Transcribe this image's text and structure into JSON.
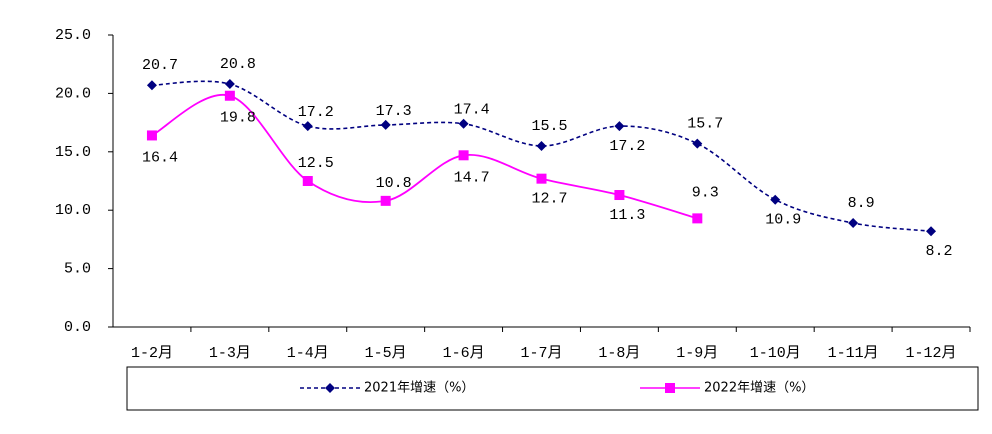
{
  "chart_data": {
    "type": "line",
    "categories": [
      "1-2月",
      "1-3月",
      "1-4月",
      "1-5月",
      "1-6月",
      "1-7月",
      "1-8月",
      "1-9月",
      "1-10月",
      "1-11月",
      "1-12月"
    ],
    "series": [
      {
        "name": "2021年增速（%）",
        "color": "#000080",
        "marker": "diamond",
        "dash": true,
        "values": [
          20.7,
          20.8,
          17.2,
          17.3,
          17.4,
          15.5,
          17.2,
          15.7,
          10.9,
          8.9,
          8.2
        ]
      },
      {
        "name": "2022年增速（%）",
        "color": "#ff00ff",
        "marker": "square",
        "dash": false,
        "values": [
          16.4,
          19.8,
          12.5,
          10.8,
          14.7,
          12.7,
          11.3,
          9.3,
          null,
          null,
          null
        ]
      }
    ],
    "ylim": [
      0,
      25
    ],
    "yticks": [
      {
        "value": 0,
        "label": "0.0"
      },
      {
        "value": 5,
        "label": "5.0"
      },
      {
        "value": 10,
        "label": "10.0"
      },
      {
        "value": 15,
        "label": "15.0"
      },
      {
        "value": 20,
        "label": "20.0"
      },
      {
        "value": 25,
        "label": "25.0"
      }
    ],
    "legend": "bottom"
  }
}
